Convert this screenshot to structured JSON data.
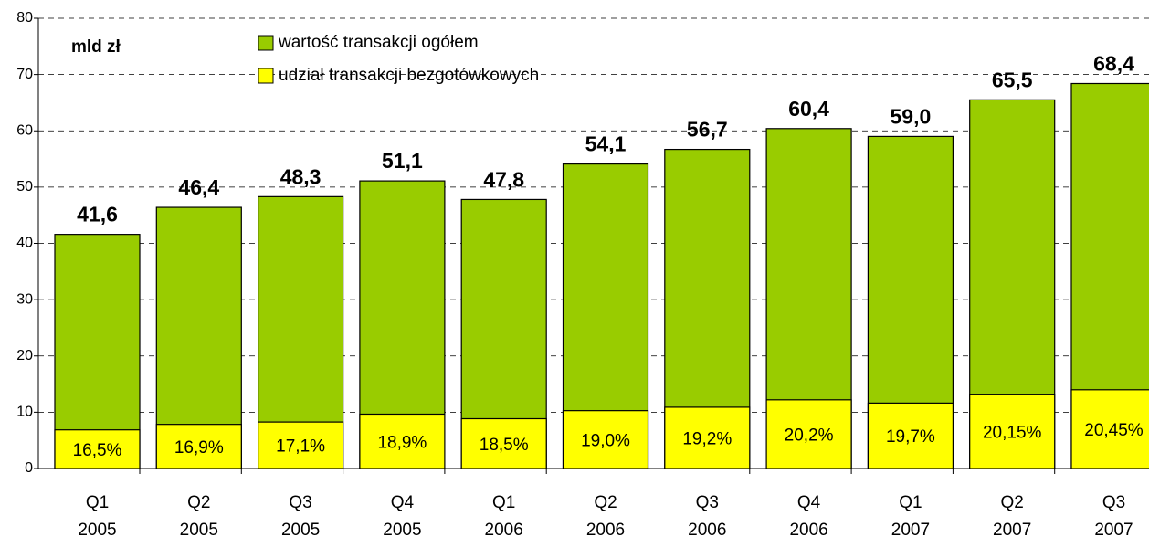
{
  "chart_data": {
    "type": "bar",
    "annotation": "mld zł",
    "categories": [
      [
        "Q1",
        "2005"
      ],
      [
        "Q2",
        "2005"
      ],
      [
        "Q3",
        "2005"
      ],
      [
        "Q4",
        "2005"
      ],
      [
        "Q1",
        "2006"
      ],
      [
        "Q2",
        "2006"
      ],
      [
        "Q3",
        "2006"
      ],
      [
        "Q4",
        "2006"
      ],
      [
        "Q1",
        "2007"
      ],
      [
        "Q2",
        "2007"
      ],
      [
        "Q3",
        "2007"
      ]
    ],
    "series": [
      {
        "name": "wartość transakcji ogółem",
        "color": "#99cc00",
        "values": [
          41.6,
          46.4,
          48.3,
          51.1,
          47.8,
          54.1,
          56.7,
          60.4,
          59.0,
          65.5,
          68.4
        ],
        "value_labels": [
          "41,6",
          "46,4",
          "48,3",
          "51,1",
          "47,8",
          "54,1",
          "56,7",
          "60,4",
          "59,0",
          "65,5",
          "68,4"
        ]
      },
      {
        "name": "udział transakcji bezgotówkowych",
        "color": "#ffff00",
        "values": [
          16.5,
          16.9,
          17.1,
          18.9,
          18.5,
          19.0,
          19.2,
          20.2,
          19.7,
          20.15,
          20.45
        ],
        "value_labels": [
          "16,5%",
          "16,9%",
          "17,1%",
          "18,9%",
          "18,5%",
          "19,0%",
          "19,2%",
          "20,2%",
          "19,7%",
          "20,15%",
          "20,45%"
        ]
      }
    ],
    "ylim": [
      0,
      80
    ],
    "yticks": [
      0,
      10,
      20,
      30,
      40,
      50,
      60,
      70,
      80
    ],
    "grid": true
  }
}
